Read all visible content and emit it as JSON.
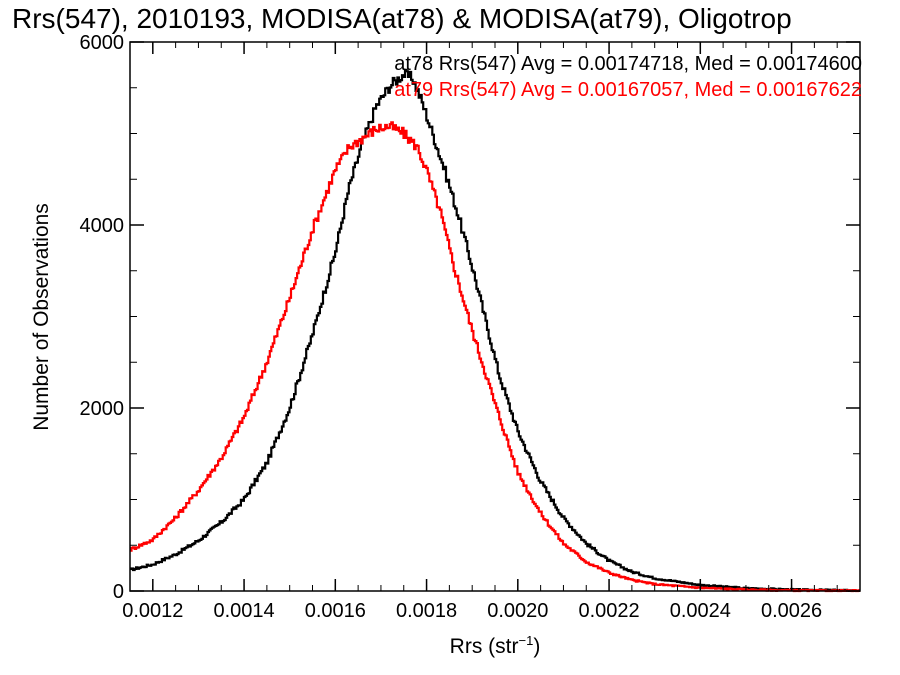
{
  "chart_data": {
    "type": "line",
    "title": "Rrs(547), 2010193, MODISA(at78) & MODISA(at79), Oligotrop",
    "xlabel": "Rrs (str",
    "xlabel_sup": "−1",
    "xlabel_close": ")",
    "ylabel": "Number of Observations",
    "xlim": [
      0.00115,
      0.00275
    ],
    "ylim": [
      0,
      6000
    ],
    "x_ticks": [
      0.0012,
      0.0014,
      0.0016,
      0.0018,
      0.002,
      0.0022,
      0.0024,
      0.0026
    ],
    "x_tick_labels": [
      "0.0012",
      "0.0014",
      "0.0016",
      "0.0018",
      "0.0020",
      "0.0022",
      "0.0024",
      "0.0026"
    ],
    "y_ticks": [
      0,
      2000,
      4000,
      6000
    ],
    "y_tick_labels": [
      "0",
      "2000",
      "4000",
      "6000"
    ],
    "grid": false,
    "legend_position": "top-right",
    "series": [
      {
        "legend": "at78 Rrs(547) Avg = 0.00174718, Med = 0.00174600",
        "color": "#000000",
        "x": [
          0.00115,
          0.0012,
          0.00125,
          0.0013,
          0.00135,
          0.0014,
          0.00145,
          0.0015,
          0.00155,
          0.0016,
          0.00163,
          0.00166,
          0.00169,
          0.00172,
          0.00175,
          0.00177,
          0.00179,
          0.00181,
          0.00184,
          0.00187,
          0.0019,
          0.00193,
          0.00196,
          0.002,
          0.00205,
          0.0021,
          0.00215,
          0.0022,
          0.00225,
          0.0023,
          0.0024,
          0.0025,
          0.0026,
          0.00275
        ],
        "y": [
          230,
          290,
          400,
          550,
          750,
          1000,
          1400,
          2000,
          2800,
          3700,
          4400,
          4900,
          5300,
          5520,
          5650,
          5600,
          5350,
          5050,
          4600,
          4100,
          3550,
          2950,
          2350,
          1750,
          1200,
          800,
          520,
          330,
          210,
          140,
          65,
          30,
          15,
          5
        ]
      },
      {
        "legend": "at79 Rrs(547) Avg = 0.00167057, Med = 0.00167622",
        "color": "#ff0000",
        "x": [
          0.00115,
          0.0012,
          0.00125,
          0.0013,
          0.00135,
          0.0014,
          0.00145,
          0.0015,
          0.00155,
          0.0016,
          0.00163,
          0.00166,
          0.00169,
          0.00172,
          0.00175,
          0.00178,
          0.0018,
          0.00183,
          0.00186,
          0.0019,
          0.00195,
          0.002,
          0.00205,
          0.0021,
          0.00215,
          0.0022,
          0.00225,
          0.0023,
          0.0024,
          0.0025,
          0.0026,
          0.00275
        ],
        "y": [
          450,
          560,
          800,
          1100,
          1450,
          1900,
          2500,
          3200,
          3950,
          4600,
          4850,
          4950,
          5050,
          5080,
          5000,
          4850,
          4600,
          4150,
          3550,
          2850,
          2050,
          1300,
          850,
          520,
          320,
          200,
          120,
          75,
          35,
          15,
          5,
          2
        ]
      }
    ]
  }
}
